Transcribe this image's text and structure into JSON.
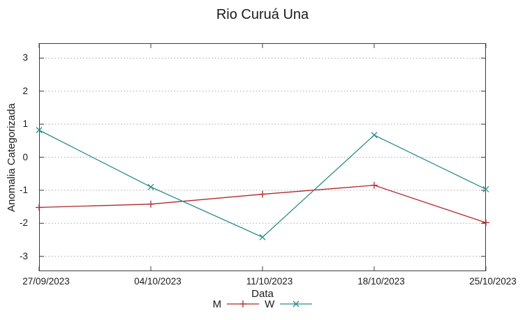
{
  "title": "Rio Curuá Una",
  "colors": {
    "axis": "#3c3c3c",
    "grid": "#a8a8a8",
    "text": "#1a1a1a",
    "m_series": "#b02828",
    "w_series": "#2a8c8c"
  },
  "chart_data": {
    "type": "line",
    "title": "Rio Curuá Una",
    "xlabel": "Data",
    "ylabel": "Anomalia Categorizada",
    "categories": [
      "27/09/2023",
      "04/10/2023",
      "11/10/2023",
      "18/10/2023",
      "25/10/2023"
    ],
    "series": [
      {
        "name": "M",
        "marker": "plus",
        "color": "#b02828",
        "values": [
          -1.52,
          -1.42,
          -1.12,
          -0.85,
          -1.98
        ]
      },
      {
        "name": "W",
        "marker": "cross",
        "color": "#2a8c8c",
        "values": [
          0.82,
          -0.9,
          -2.42,
          0.67,
          -0.97
        ]
      }
    ],
    "yticks": [
      -3,
      -2,
      -1,
      0,
      1,
      2,
      3
    ],
    "ylim": [
      -3.45,
      3.45
    ],
    "grid": "horizontal-dotted",
    "legend_position": "bottom-center"
  }
}
